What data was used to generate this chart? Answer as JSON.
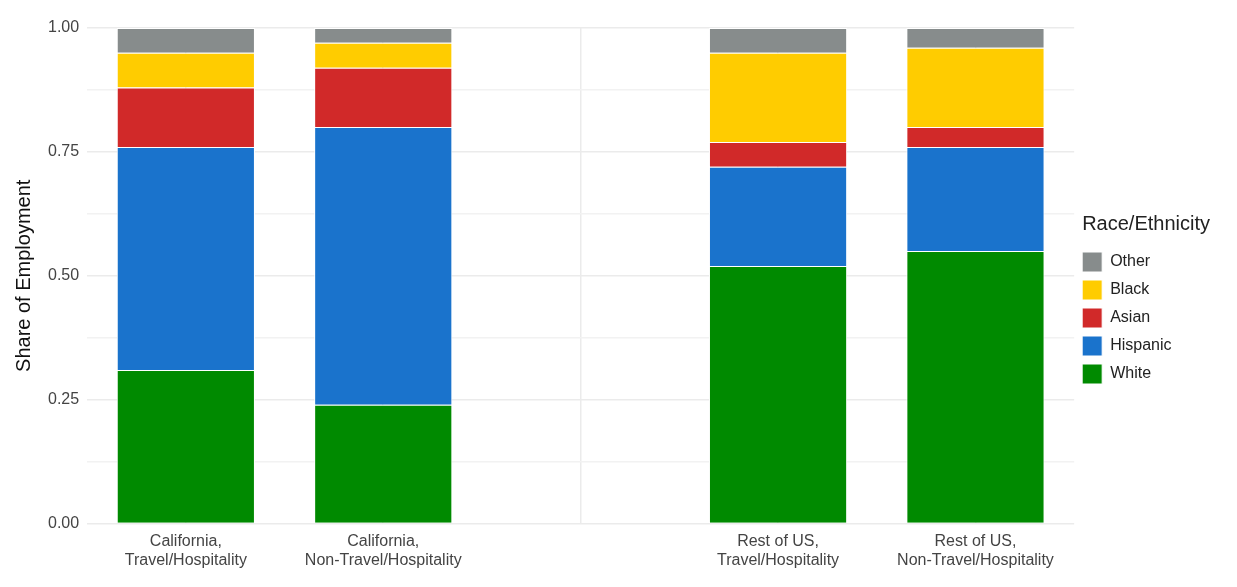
{
  "chart_data": {
    "type": "bar",
    "stacked": true,
    "ylabel": "Share of Employment",
    "legend_title": "Race/Ethnicity",
    "legend": "right",
    "grid": true,
    "categories": [
      "California, Travel/Hospitality",
      "California, Non-Travel/Hospitality",
      null,
      "Rest of US, Travel/Hospitality",
      "Rest of US, Non-Travel/Hospitality"
    ],
    "ylim": [
      0,
      1
    ],
    "yticks": [
      {
        "value": 0,
        "label": "0.00"
      },
      {
        "value": 0.125,
        "label": null
      },
      {
        "value": 0.25,
        "label": "0.25"
      },
      {
        "value": 0.375,
        "label": null
      },
      {
        "value": 0.5,
        "label": "0.50"
      },
      {
        "value": 0.625,
        "label": null
      },
      {
        "value": 0.75,
        "label": "0.75"
      },
      {
        "value": 0.875,
        "label": null
      },
      {
        "value": 1,
        "label": "1.00"
      }
    ],
    "series": [
      {
        "name": "White",
        "color": "#008a00",
        "values": [
          0.31,
          0.24,
          null,
          0.52,
          0.55
        ]
      },
      {
        "name": "Hispanic",
        "color": "#1a73cc",
        "values": [
          0.45,
          0.56,
          null,
          0.2,
          0.21
        ]
      },
      {
        "name": "Asian",
        "color": "#d12929",
        "values": [
          0.12,
          0.12,
          null,
          0.05,
          0.04
        ]
      },
      {
        "name": "Black",
        "color": "#ffcc00",
        "values": [
          0.07,
          0.05,
          null,
          0.18,
          0.16
        ]
      },
      {
        "name": "Other",
        "color": "#878c8c",
        "values": [
          0.05,
          0.03,
          null,
          0.05,
          0.04
        ]
      }
    ]
  }
}
